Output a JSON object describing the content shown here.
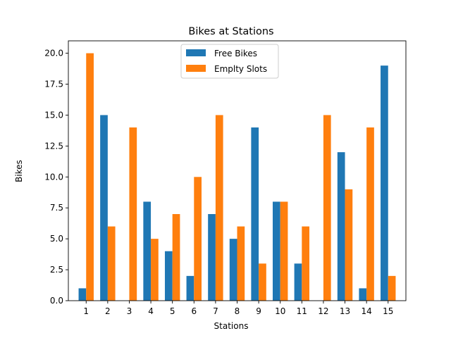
{
  "chart_data": {
    "type": "bar",
    "title": "Bikes at Stations",
    "xlabel": "Stations",
    "ylabel": "Bikes",
    "categories": [
      "1",
      "2",
      "3",
      "4",
      "5",
      "6",
      "7",
      "8",
      "9",
      "10",
      "11",
      "12",
      "13",
      "14",
      "15"
    ],
    "series": [
      {
        "name": "Free Bikes",
        "color": "#1f77b4",
        "values": [
          1,
          15,
          0,
          8,
          4,
          2,
          7,
          5,
          14,
          8,
          3,
          0,
          12,
          1,
          19
        ]
      },
      {
        "name": "Emplty Slots",
        "color": "#ff7f0e",
        "values": [
          20,
          6,
          14,
          5,
          7,
          10,
          15,
          6,
          3,
          8,
          6,
          15,
          9,
          14,
          2
        ]
      }
    ],
    "ylim": [
      0,
      21
    ],
    "yticks": [
      0.0,
      2.5,
      5.0,
      7.5,
      10.0,
      12.5,
      15.0,
      17.5,
      20.0
    ],
    "ytick_labels": [
      "0.0",
      "2.5",
      "5.0",
      "7.5",
      "10.0",
      "12.5",
      "15.0",
      "17.5",
      "20.0"
    ],
    "grid": false,
    "legend_position": "top-center"
  }
}
